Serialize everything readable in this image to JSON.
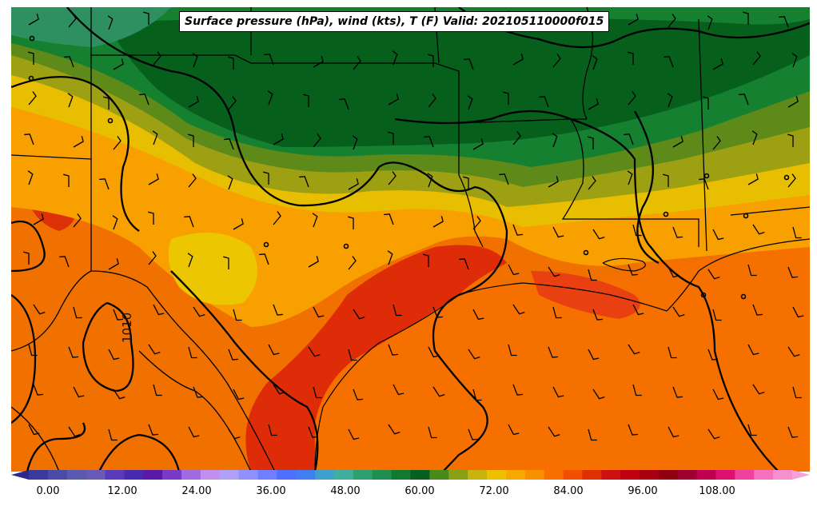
{
  "title": "Surface pressure (hPa), wind (kts), T (F) Valid: 202105110000f015",
  "isobar_label": "1010",
  "colorbar": {
    "ticks": [
      "0.00",
      "12.00",
      "24.00",
      "36.00",
      "48.00",
      "60.00",
      "72.00",
      "84.00",
      "96.00",
      "108.00"
    ],
    "colors": [
      "#3a3a9c",
      "#4a4aa8",
      "#5a5ab0",
      "#6a5ab8",
      "#5a3ab8",
      "#4a2ab0",
      "#5a1aa8",
      "#7a3ac8",
      "#a06ae0",
      "#c090f0",
      "#b0a0f8",
      "#9090ff",
      "#6f7fff",
      "#4f6fff",
      "#3f7fef",
      "#3f9fcf",
      "#3faf9f",
      "#2f9f6f",
      "#1f8f4f",
      "#107a30",
      "#086020",
      "#4a8a18",
      "#8aa014",
      "#c8b40c",
      "#f0c000",
      "#f8a800",
      "#f89000",
      "#f87000",
      "#f05000",
      "#e03000",
      "#d01010",
      "#c00010",
      "#a80010",
      "#900010",
      "#a00030",
      "#c00050",
      "#e01070",
      "#f040a0",
      "#f870c0",
      "#f890d0"
    ]
  },
  "map": {
    "layers": "temperature contours, isobars, wind barbs, state and coastline borders",
    "temp_colors": {
      "cold_dark_green": "#075f1c",
      "green": "#14802a",
      "olive": "#5c8a1a",
      "olive_yellow": "#9aa212",
      "yellow": "#e8be00",
      "amber": "#f6a600",
      "orange": "#f88a00",
      "orange_red": "#f06000",
      "red": "#dc2c08"
    }
  }
}
